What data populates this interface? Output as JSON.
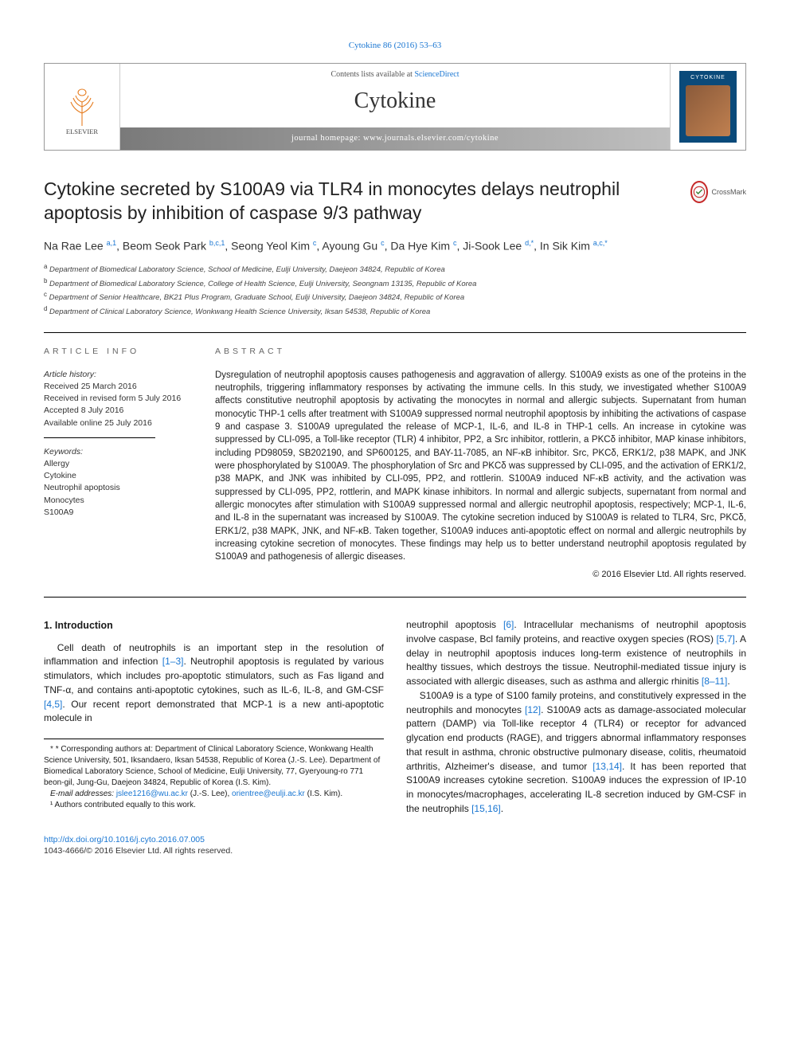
{
  "header": {
    "citation_link": "Cytokine 86 (2016) 53–63",
    "contents_prefix": "Contents lists available at ",
    "contents_link": "ScienceDirect",
    "journal_name": "Cytokine",
    "homepage_prefix": "journal homepage: ",
    "homepage_url": "www.journals.elsevier.com/cytokine",
    "publisher_logo_label": "ELSEVIER"
  },
  "crossmark": {
    "label": "CrossMark"
  },
  "article": {
    "title": "Cytokine secreted by S100A9 via TLR4 in monocytes delays neutrophil apoptosis by inhibition of caspase 9/3 pathway",
    "authors_html": "Na Rae Lee <sup>a,1</sup>, Beom Seok Park <sup>b,c,1</sup>, Seong Yeol Kim <sup>c</sup>, Ayoung Gu <sup>c</sup>, Da Hye Kim <sup>c</sup>, Ji-Sook Lee <sup>d,*</sup>, In Sik Kim <sup>a,c,*</sup>"
  },
  "affiliations": [
    {
      "sup": "a",
      "text": "Department of Biomedical Laboratory Science, School of Medicine, Eulji University, Daejeon 34824, Republic of Korea"
    },
    {
      "sup": "b",
      "text": "Department of Biomedical Laboratory Science, College of Health Science, Eulji University, Seongnam 13135, Republic of Korea"
    },
    {
      "sup": "c",
      "text": "Department of Senior Healthcare, BK21 Plus Program, Graduate School, Eulji University, Daejeon 34824, Republic of Korea"
    },
    {
      "sup": "d",
      "text": "Department of Clinical Laboratory Science, Wonkwang Health Science University, Iksan 54538, Republic of Korea"
    }
  ],
  "info": {
    "label": "ARTICLE INFO",
    "history_head": "Article history:",
    "history": [
      "Received 25 March 2016",
      "Received in revised form 5 July 2016",
      "Accepted 8 July 2016",
      "Available online 25 July 2016"
    ],
    "keywords_head": "Keywords:",
    "keywords": [
      "Allergy",
      "Cytokine",
      "Neutrophil apoptosis",
      "Monocytes",
      "S100A9"
    ]
  },
  "abstract": {
    "label": "ABSTRACT",
    "text": "Dysregulation of neutrophil apoptosis causes pathogenesis and aggravation of allergy. S100A9 exists as one of the proteins in the neutrophils, triggering inflammatory responses by activating the immune cells. In this study, we investigated whether S100A9 affects constitutive neutrophil apoptosis by activating the monocytes in normal and allergic subjects. Supernatant from human monocytic THP-1 cells after treatment with S100A9 suppressed normal neutrophil apoptosis by inhibiting the activations of caspase 9 and caspase 3. S100A9 upregulated the release of MCP-1, IL-6, and IL-8 in THP-1 cells. An increase in cytokine was suppressed by CLI-095, a Toll-like receptor (TLR) 4 inhibitor, PP2, a Src inhibitor, rottlerin, a PKCδ inhibitor, MAP kinase inhibitors, including PD98059, SB202190, and SP600125, and BAY-11-7085, an NF-κB inhibitor. Src, PKCδ, ERK1/2, p38 MAPK, and JNK were phosphorylated by S100A9. The phosphorylation of Src and PKCδ was suppressed by CLI-095, and the activation of ERK1/2, p38 MAPK, and JNK was inhibited by CLI-095, PP2, and rottlerin. S100A9 induced NF-κB activity, and the activation was suppressed by CLI-095, PP2, rottlerin, and MAPK kinase inhibitors. In normal and allergic subjects, supernatant from normal and allergic monocytes after stimulation with S100A9 suppressed normal and allergic neutrophil apoptosis, respectively; MCP-1, IL-6, and IL-8 in the supernatant was increased by S100A9. The cytokine secretion induced by S100A9 is related to TLR4, Src, PKCδ, ERK1/2, p38 MAPK, JNK, and NF-κB. Taken together, S100A9 induces anti-apoptotic effect on normal and allergic neutrophils by increasing cytokine secretion of monocytes. These findings may help us to better understand neutrophil apoptosis regulated by S100A9 and pathogenesis of allergic diseases.",
    "copyright": "© 2016 Elsevier Ltd. All rights reserved."
  },
  "body": {
    "intro_heading": "1. Introduction",
    "left_p1_a": "Cell death of neutrophils is an important step in the resolution of inflammation and infection ",
    "left_p1_cite1": "[1–3]",
    "left_p1_b": ". Neutrophil apoptosis is regulated by various stimulators, which includes pro-apoptotic stimulators, such as Fas ligand and TNF-α, and contains anti-apoptotic cytokines, such as IL-6, IL-8, and GM-CSF ",
    "left_p1_cite2": "[4,5]",
    "left_p1_c": ". Our recent report demonstrated that MCP-1 is a new anti-apoptotic molecule in",
    "right_p1_a": "neutrophil apoptosis ",
    "right_p1_cite1": "[6]",
    "right_p1_b": ". Intracellular mechanisms of neutrophil apoptosis involve caspase, Bcl family proteins, and reactive oxygen species (ROS) ",
    "right_p1_cite2": "[5,7]",
    "right_p1_c": ". A delay in neutrophil apoptosis induces long-term existence of neutrophils in healthy tissues, which destroys the tissue. Neutrophil-mediated tissue injury is associated with allergic diseases, such as asthma and allergic rhinitis ",
    "right_p1_cite3": "[8–11]",
    "right_p1_d": ".",
    "right_p2_a": "S100A9 is a type of S100 family proteins, and constitutively expressed in the neutrophils and monocytes ",
    "right_p2_cite1": "[12]",
    "right_p2_b": ". S100A9 acts as damage-associated molecular pattern (DAMP) via Toll-like receptor 4 (TLR4) or receptor for advanced glycation end products (RAGE), and triggers abnormal inflammatory responses that result in asthma, chronic obstructive pulmonary disease, colitis, rheumatoid arthritis, Alzheimer's disease, and tumor ",
    "right_p2_cite2": "[13,14]",
    "right_p2_c": ". It has been reported that S100A9 increases cytokine secretion. S100A9 induces the expression of IP-10 in monocytes/macrophages, accelerating IL-8 secretion induced by GM-CSF in the neutrophils ",
    "right_p2_cite3": "[15,16]",
    "right_p2_d": "."
  },
  "footnotes": {
    "corr": "* Corresponding authors at: Department of Clinical Laboratory Science, Wonkwang Health Science University, 501, Iksandaero, Iksan 54538, Republic of Korea (J.-S. Lee). Department of Biomedical Laboratory Science, School of Medicine, Eulji University, 77, Gyeryoung-ro 771 beon-gil, Jung-Gu, Daejeon 34824, Republic of Korea (I.S. Kim).",
    "email_label": "E-mail addresses: ",
    "email1": "jslee1216@wu.ac.kr",
    "email1_owner": " (J.-S. Lee), ",
    "email2": "orientree@eulji.ac.kr",
    "email2_owner": " (I.S. Kim).",
    "equal": "¹ Authors contributed equally to this work."
  },
  "footer": {
    "doi": "http://dx.doi.org/10.1016/j.cyto.2016.07.005",
    "issn_line": "1043-4666/© 2016 Elsevier Ltd. All rights reserved."
  },
  "colors": {
    "link": "#1976d2",
    "banner_grad_from": "#7a7a7a",
    "banner_grad_to": "#bfbfbf",
    "cover_bg": "#0a4a7a"
  }
}
